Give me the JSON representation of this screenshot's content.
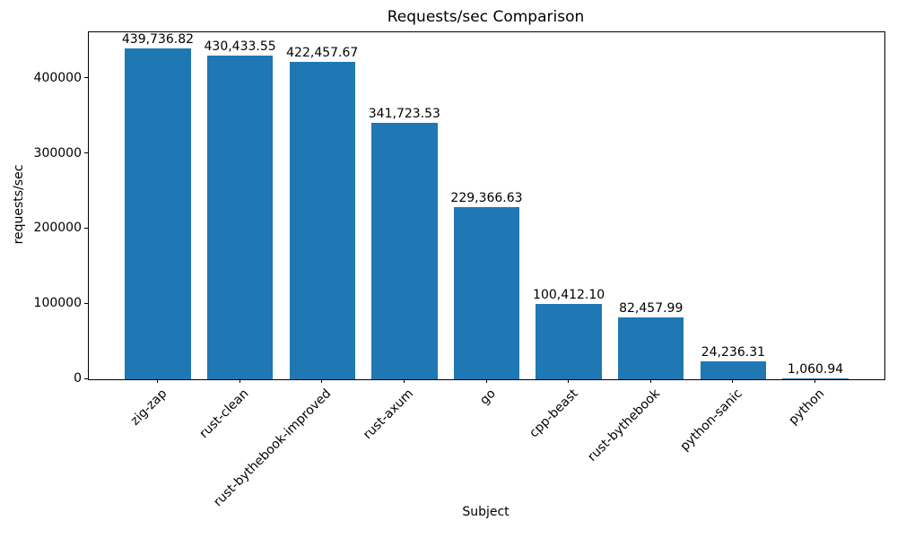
{
  "chart_data": {
    "type": "bar",
    "title": "Requests/sec Comparison",
    "xlabel": "Subject",
    "ylabel": "requests/sec",
    "categories": [
      "zig-zap",
      "rust-clean",
      "rust-bythebook-improved",
      "rust-axum",
      "go",
      "cpp-beast",
      "rust-bythebook",
      "python-sanic",
      "python"
    ],
    "values": [
      439736.82,
      430433.55,
      422457.67,
      341723.53,
      229366.63,
      100412.1,
      82457.99,
      24236.31,
      1060.94
    ],
    "value_labels": [
      "439,736.82",
      "430,433.55",
      "422,457.67",
      "341,723.53",
      "229,366.63",
      "100,412.10",
      "82,457.99",
      "24,236.31",
      "1,060.94"
    ],
    "yticks": [
      0,
      100000,
      200000,
      300000,
      400000
    ],
    "ytick_labels": [
      "0",
      "100000",
      "200000",
      "300000",
      "400000"
    ],
    "ylim": [
      0,
      461723.66
    ],
    "bar_color": "#1f77b4",
    "bar_width_fraction": 0.8,
    "grid": false,
    "legend": null
  }
}
